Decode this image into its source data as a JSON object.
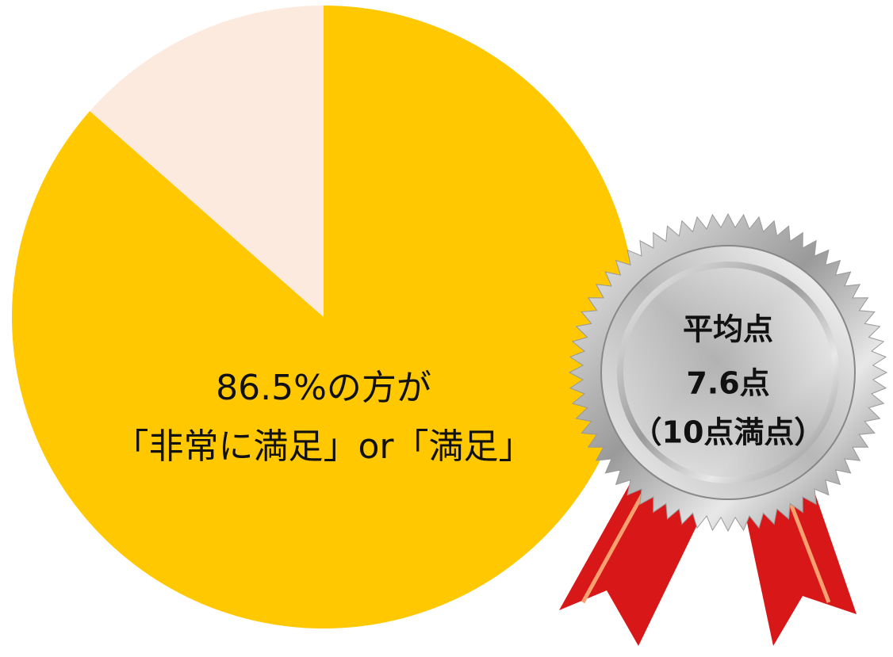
{
  "chart_data": {
    "type": "pie",
    "categories": [
      null,
      null
    ],
    "values": [
      86.5,
      13.5
    ],
    "colors": [
      "#ffc800",
      "#fdeadf"
    ],
    "annotations": [
      "86.5%の方が",
      "「非常に満足」or「満足」"
    ],
    "medal": [
      "平均点",
      "7.6点",
      "（10点満点）"
    ]
  }
}
